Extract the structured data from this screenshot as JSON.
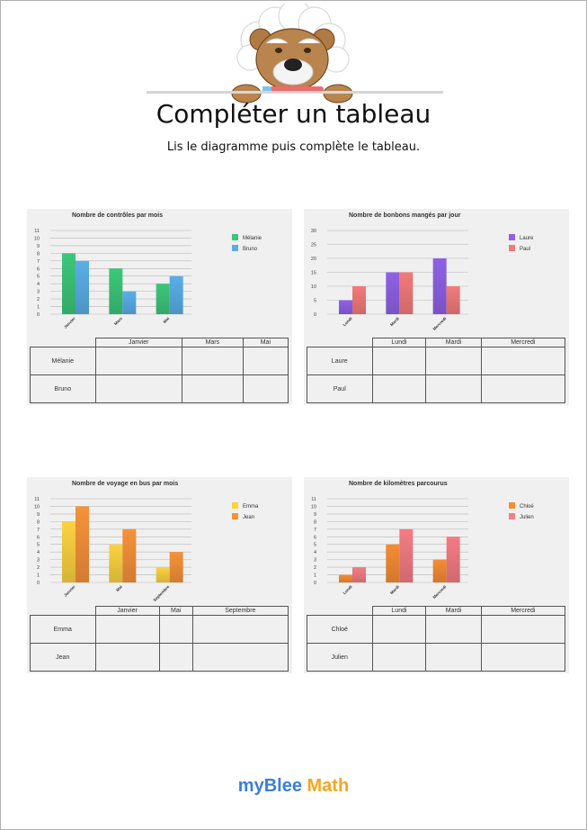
{
  "header": {
    "title": "Compléter un tableau",
    "instruction": "Lis le diagramme puis complète le tableau."
  },
  "footer": {
    "brand_prefix": "myBlee",
    "brand_suffix": "Math"
  },
  "colors": {
    "brand_blue": "#3b7fd9",
    "brand_orange": "#f5a623"
  },
  "mascot": {
    "icon": "bear-mascot-icon"
  },
  "exercises": [
    {
      "chart_data": {
        "type": "bar",
        "title": "Nombre de contrôles par mois",
        "categories": [
          "Janvier",
          "Mars",
          "Mai"
        ],
        "series": [
          {
            "name": "Mélanie",
            "values": [
              8,
              6,
              4
            ],
            "color": "#3cc77a"
          },
          {
            "name": "Bruno",
            "values": [
              7,
              3,
              5
            ],
            "color": "#5aaee8"
          }
        ],
        "yticks": [
          0,
          1,
          2,
          3,
          4,
          5,
          6,
          7,
          8,
          9,
          10,
          11
        ],
        "ylim": [
          0,
          11
        ],
        "grid": true,
        "legend": "top-right"
      },
      "table": {
        "columns": [
          "Janvier",
          "Mars",
          "Mai"
        ],
        "rows": [
          "Mélanie",
          "Bruno"
        ]
      }
    },
    {
      "chart_data": {
        "type": "bar",
        "title": "Nombre de bonbons mangés par jour",
        "categories": [
          "Lundi",
          "Mardi",
          "Mercredi"
        ],
        "series": [
          {
            "name": "Laure",
            "values": [
              5,
              15,
              20
            ],
            "color": "#8e62e6"
          },
          {
            "name": "Paul",
            "values": [
              10,
              15,
              10
            ],
            "color": "#f47a7a"
          }
        ],
        "yticks": [
          0,
          5,
          10,
          15,
          20,
          25,
          30
        ],
        "ylim": [
          0,
          30
        ],
        "grid": true,
        "legend": "top-right"
      },
      "table": {
        "columns": [
          "Lundi",
          "Mardi",
          "Mercredi"
        ],
        "rows": [
          "Laure",
          "Paul"
        ]
      }
    },
    {
      "chart_data": {
        "type": "bar",
        "title": "Nombre de voyage en bus par mois",
        "categories": [
          "Janvier",
          "Mai",
          "Septembre"
        ],
        "series": [
          {
            "name": "Emma",
            "values": [
              8,
              5,
              2
            ],
            "color": "#fbd240"
          },
          {
            "name": "Jean",
            "values": [
              10,
              7,
              4
            ],
            "color": "#f6923a"
          }
        ],
        "yticks": [
          0,
          1,
          2,
          3,
          4,
          5,
          6,
          7,
          8,
          9,
          10,
          11
        ],
        "ylim": [
          0,
          11
        ],
        "grid": true,
        "legend": "top-right"
      },
      "table": {
        "columns": [
          "Janvier",
          "Mai",
          "Septembre"
        ],
        "rows": [
          "Emma",
          "Jean"
        ]
      }
    },
    {
      "chart_data": {
        "type": "bar",
        "title": "Nombre de kilomètres parcourus",
        "categories": [
          "Lundi",
          "Mardi",
          "Mercredi"
        ],
        "series": [
          {
            "name": "Chloé",
            "values": [
              1,
              5,
              3
            ],
            "color": "#f68c34"
          },
          {
            "name": "Julien",
            "values": [
              2,
              7,
              6
            ],
            "color": "#f47c84"
          }
        ],
        "yticks": [
          0,
          1,
          2,
          3,
          4,
          5,
          6,
          7,
          8,
          9,
          10,
          11
        ],
        "ylim": [
          0,
          11
        ],
        "grid": true,
        "legend": "top-right"
      },
      "table": {
        "columns": [
          "Lundi",
          "Mardi",
          "Mercredi"
        ],
        "rows": [
          "Chloé",
          "Julien"
        ]
      }
    }
  ]
}
